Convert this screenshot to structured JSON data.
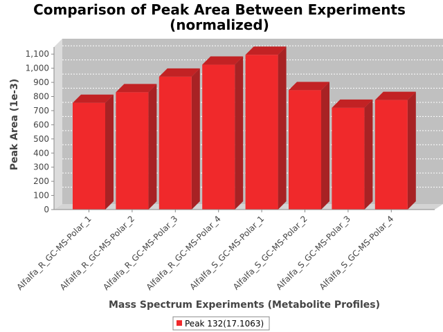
{
  "chart_data": {
    "type": "bar",
    "title_line1": "Comparison of Peak Area Between Experiments",
    "title_line2": "(normalized)",
    "xlabel": "Mass Spectrum Experiments (Metabolite Profiles)",
    "ylabel": "Peak Area (1e-3)",
    "categories": [
      "Alfalfa_R_GC-MS-Polar_1",
      "Alfalfa_R_GC-MS-Polar_2",
      "Alfalfa_R_GC-MS-Polar_3",
      "Alfalfa_R_GC-MS-Polar_4",
      "Alfalfa_S_GC-MS-Polar_1",
      "Alfalfa_S_GC-MS-Polar_2",
      "Alfalfa_S_GC-MS-Polar_3",
      "Alfalfa_S_GC-MS-Polar_4"
    ],
    "series": [
      {
        "name": "Peak 132(17.1063)",
        "values": [
          755,
          830,
          940,
          1025,
          1095,
          845,
          720,
          775
        ]
      }
    ],
    "ylim": [
      0,
      1150
    ],
    "yticks": [
      0,
      100,
      200,
      300,
      400,
      500,
      600,
      700,
      800,
      900,
      1000,
      1100
    ],
    "ytick_labels": [
      "0",
      "100",
      "200",
      "300",
      "400",
      "500",
      "600",
      "700",
      "800",
      "900",
      "1,000",
      "1,100"
    ],
    "grid": true,
    "legend": "bottom-center",
    "colors": {
      "bar": "#f0292b",
      "bar_side": "#a82224",
      "bar_top": "#c22224",
      "plot_back": "#c0c0c0",
      "plot_floor": "#d4d4d4"
    }
  }
}
